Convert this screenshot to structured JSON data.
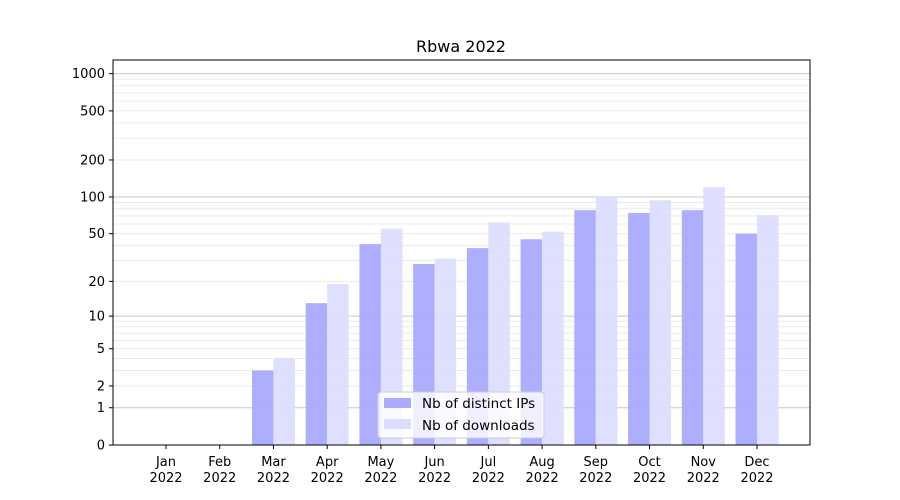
{
  "chart_data": {
    "type": "bar",
    "title": "Rbwa 2022",
    "xlabel": "",
    "ylabel": "",
    "yscale": "log10(1+y)",
    "ylim": [
      0,
      1290
    ],
    "categories": [
      [
        "Jan",
        "2022"
      ],
      [
        "Feb",
        "2022"
      ],
      [
        "Mar",
        "2022"
      ],
      [
        "Apr",
        "2022"
      ],
      [
        "May",
        "2022"
      ],
      [
        "Jun",
        "2022"
      ],
      [
        "Jul",
        "2022"
      ],
      [
        "Aug",
        "2022"
      ],
      [
        "Sep",
        "2022"
      ],
      [
        "Oct",
        "2022"
      ],
      [
        "Nov",
        "2022"
      ],
      [
        "Dec",
        "2022"
      ]
    ],
    "yticks": [
      0,
      1,
      2,
      5,
      10,
      20,
      50,
      100,
      200,
      500,
      1000
    ],
    "ytick_labels": [
      "0",
      "1",
      "2",
      "5",
      "10",
      "20",
      "50",
      "100",
      "200",
      "500",
      "1000"
    ],
    "grid": true,
    "legend_position": "lower-center",
    "series": [
      {
        "name": "Nb of distinct IPs",
        "color": "#aaaaff",
        "values": [
          0,
          0,
          3,
          13,
          41,
          28,
          38,
          45,
          78,
          74,
          78,
          50
        ]
      },
      {
        "name": "Nb of downloads",
        "color": "#ddddff",
        "values": [
          0,
          0,
          4,
          19,
          55,
          31,
          62,
          52,
          100,
          94,
          120,
          71
        ]
      }
    ]
  }
}
